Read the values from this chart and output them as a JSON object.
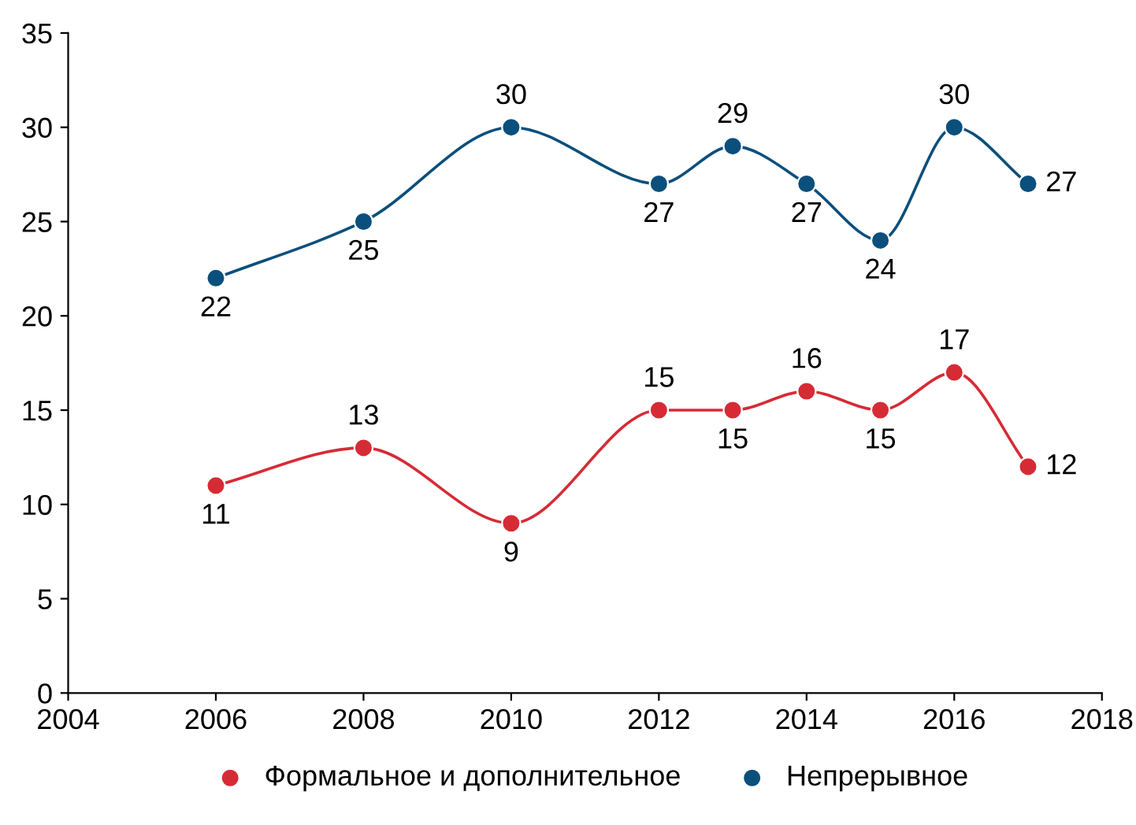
{
  "chart_data": {
    "type": "line",
    "x": [
      2006,
      2008,
      2010,
      2012,
      2013,
      2014,
      2015,
      2016,
      2017
    ],
    "series": [
      {
        "name": "Формальное и дополнительное",
        "color": "#d62b35",
        "values": [
          11,
          13,
          9,
          15,
          15,
          16,
          15,
          17,
          12
        ]
      },
      {
        "name": "Непрерывное",
        "color": "#0b4f7c",
        "values": [
          22,
          25,
          30,
          27,
          29,
          27,
          24,
          30,
          27
        ]
      }
    ],
    "xlim": [
      2004,
      2018
    ],
    "xticks": [
      2004,
      2006,
      2008,
      2010,
      2012,
      2014,
      2016,
      2018
    ],
    "ylim": [
      0,
      35
    ],
    "yticks": [
      0,
      5,
      10,
      15,
      20,
      25,
      30,
      35
    ],
    "data_labels": true,
    "marker": "circle",
    "legend": "bottom",
    "grid": false
  }
}
